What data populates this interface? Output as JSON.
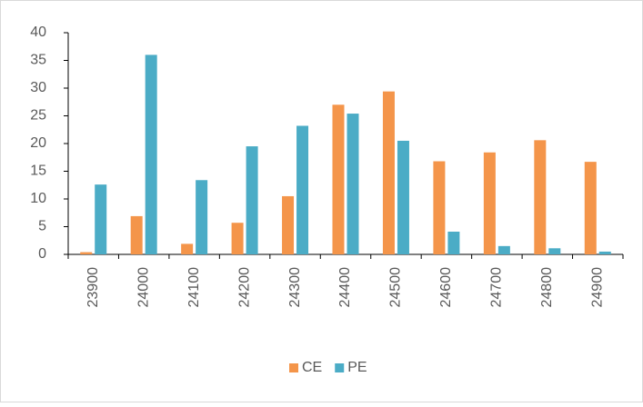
{
  "chart_data": {
    "type": "bar",
    "categories": [
      "23900",
      "24000",
      "24100",
      "24200",
      "24300",
      "24400",
      "24500",
      "24600",
      "24700",
      "24800",
      "24900"
    ],
    "series": [
      {
        "name": "CE",
        "color": "#f4954a",
        "values": [
          0.4,
          6.9,
          1.9,
          5.7,
          10.5,
          27,
          29.4,
          16.8,
          18.4,
          20.6,
          16.7
        ]
      },
      {
        "name": "PE",
        "color": "#4bacc6",
        "values": [
          12.6,
          36,
          13.4,
          19.5,
          23.2,
          25.4,
          20.5,
          4.1,
          1.5,
          1.1,
          0.5
        ]
      }
    ],
    "ylim": [
      0,
      40
    ],
    "yticks": [
      0,
      5,
      10,
      15,
      20,
      25,
      30,
      35,
      40
    ],
    "grid": false,
    "legend": "bottom"
  }
}
